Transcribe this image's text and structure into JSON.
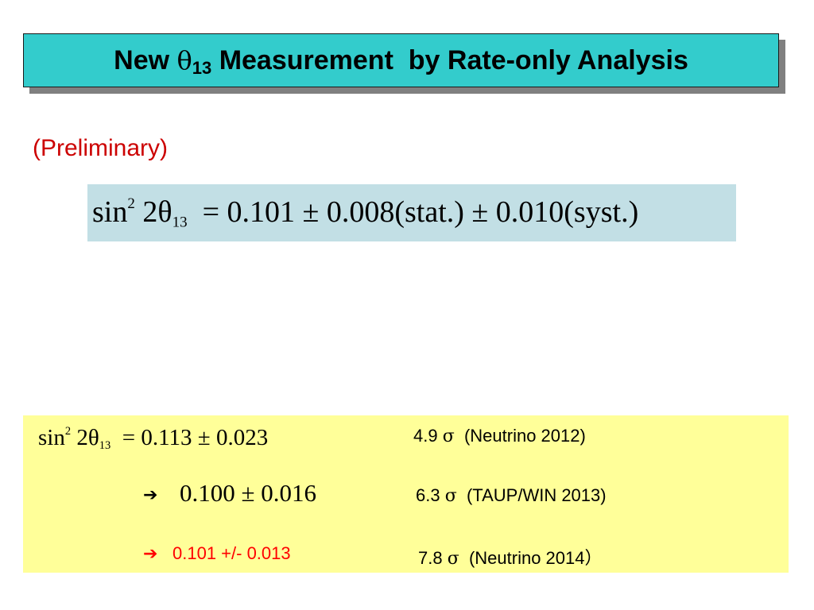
{
  "title": {
    "prefix": "New ",
    "theta": "θ",
    "subscript": "13",
    "suffix": " Measurement  by Rate-only Analysis"
  },
  "preliminary": "(Preliminary)",
  "main_result": {
    "lhs": "sin",
    "sup": "2",
    "angle": " 2θ",
    "sub": "13",
    "rhs": "  = 0.101 ± 0.008(stat.) ± 0.010(syst.)"
  },
  "history": {
    "eq_lhs": "sin",
    "eq_sup": "2",
    "eq_angle": " 2θ",
    "eq_sub": "13",
    "eq_rhs": "  = 0.113 ± 0.023",
    "arrow": "➔",
    "second_value": "0.100 ± 0.016",
    "third_value": "0.101 +/- 0.013",
    "sigma": "σ",
    "rows": [
      {
        "significance": "4.9 ",
        "source": "  (Neutrino 2012)"
      },
      {
        "significance": "6.3 ",
        "source": "  (TAUP/WIN 2013)"
      },
      {
        "significance": "7.8 ",
        "source": "  (Neutrino 2014）"
      }
    ]
  },
  "colors": {
    "title_bg": "#33cccc",
    "equation_bg": "#c2dfe5",
    "history_bg": "#ffff99",
    "highlight_red": "#ff0000"
  }
}
